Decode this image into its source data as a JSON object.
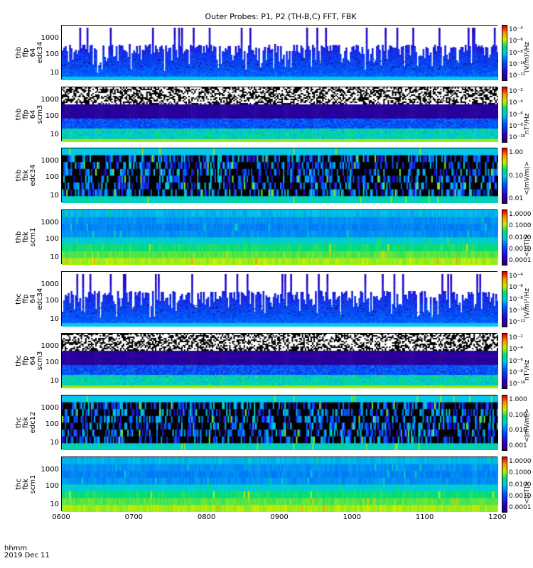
{
  "title": "Outer Probes: P1, P2 (TH-B,C) FFT, FBK",
  "footer": {
    "line1": "hhmm",
    "line2": "2019 Dec 11"
  },
  "chart_data": {
    "type": "heatmap",
    "x_ticks": [
      "0600",
      "0700",
      "0800",
      "0900",
      "1000",
      "1100",
      "1200"
    ],
    "panels": [
      {
        "ylabel": [
          "thb",
          "ffp",
          "64",
          "edc34"
        ],
        "yticks": [
          "1000",
          "100",
          "10"
        ],
        "cbar_ticks": [
          "10⁻⁴",
          "10⁻⁶",
          "10⁻⁸",
          "10⁻¹⁰",
          "10⁻¹²"
        ],
        "cbar_unit": "(V/m)²/Hz",
        "style": "ffp"
      },
      {
        "ylabel": [
          "thb",
          "ffp",
          "64",
          "scm3"
        ],
        "yticks": [
          "1000",
          "100",
          "10"
        ],
        "cbar_ticks": [
          "10⁻²",
          "10⁻⁴",
          "10⁻⁶",
          "10⁻⁸",
          "10⁻¹⁰"
        ],
        "cbar_unit": "nT²/Hz",
        "style": "scm"
      },
      {
        "ylabel": [
          "thb",
          "fbk",
          "edc34"
        ],
        "yticks": [
          "1000",
          "100",
          "10"
        ],
        "cbar_ticks": [
          "1.00",
          "0.10",
          "0.01"
        ],
        "cbar_unit": "<|mV/m|>",
        "style": "fbke"
      },
      {
        "ylabel": [
          "thb",
          "fbk",
          "scm1"
        ],
        "yticks": [
          "1000",
          "100",
          "10"
        ],
        "cbar_ticks": [
          "1.0000",
          "0.1000",
          "0.0100",
          "0.0010",
          "0.0001"
        ],
        "cbar_unit": "<|nT|>",
        "style": "fbkb"
      },
      {
        "ylabel": [
          "thc",
          "ffp",
          "64",
          "edc34"
        ],
        "yticks": [
          "1000",
          "100",
          "10"
        ],
        "cbar_ticks": [
          "10⁻⁴",
          "10⁻⁶",
          "10⁻⁸",
          "10⁻¹⁰",
          "10⁻¹²"
        ],
        "cbar_unit": "(V/m)²/Hz",
        "style": "ffp"
      },
      {
        "ylabel": [
          "thc",
          "ffp",
          "64",
          "scm3"
        ],
        "yticks": [
          "1000",
          "100",
          "10"
        ],
        "cbar_ticks": [
          "10⁻²",
          "10⁻⁴",
          "10⁻⁶",
          "10⁻⁸",
          "10⁻¹⁰"
        ],
        "cbar_unit": "nT²/Hz",
        "style": "scm"
      },
      {
        "ylabel": [
          "thc",
          "fbk",
          "edc12"
        ],
        "yticks": [
          "1000",
          "100",
          "10"
        ],
        "cbar_ticks": [
          "1.000",
          "0.100",
          "0.010",
          "0.001"
        ],
        "cbar_unit": "<|mV/m|>",
        "style": "fbke"
      },
      {
        "ylabel": [
          "thc",
          "fbk",
          "scm1"
        ],
        "yticks": [
          "1000",
          "100",
          "10"
        ],
        "cbar_ticks": [
          "1.0000",
          "0.1000",
          "0.0100",
          "0.0010",
          "0.0001"
        ],
        "cbar_unit": "<|nT|>",
        "style": "fbkb"
      }
    ]
  }
}
